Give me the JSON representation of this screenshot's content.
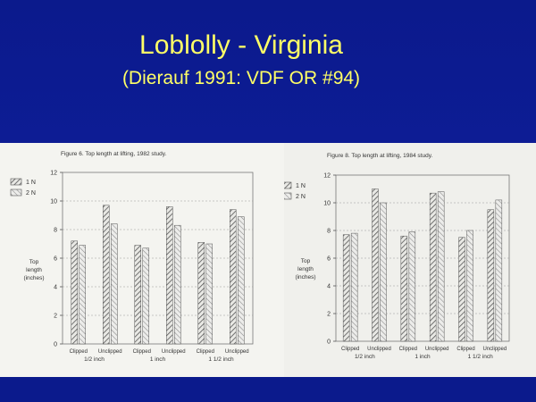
{
  "slide": {
    "title": "Loblolly - Virginia",
    "subtitle": "(Dierauf 1991: VDF OR #94)"
  },
  "chart_data": [
    {
      "type": "bar",
      "title": "Figure 6.  Top length at lifting, 1982 study.",
      "ylabel": "Top length (inches)",
      "ylabel_lines": [
        "Top",
        "length",
        "(inches)"
      ],
      "ylim": [
        0,
        12
      ],
      "yticks": [
        0,
        2,
        4,
        6,
        8,
        10,
        12
      ],
      "grid": true,
      "legend_position": "top-left",
      "categories": [
        "Clipped",
        "Unclipped",
        "Clipped",
        "Unclipped",
        "Clipped",
        "Unclipped"
      ],
      "groups": [
        "1/2 inch",
        "1 inch",
        "1 1/2 inch"
      ],
      "series": [
        {
          "name": "1 N",
          "values": [
            7.2,
            9.7,
            6.9,
            9.6,
            7.1,
            9.4
          ]
        },
        {
          "name": "2 N",
          "values": [
            6.9,
            8.4,
            6.7,
            8.3,
            7.0,
            8.9
          ]
        }
      ]
    },
    {
      "type": "bar",
      "title": "Figure 8.  Top length at lifting, 1984 study.",
      "ylabel": "Top length (inches)",
      "ylabel_lines": [
        "Top",
        "length",
        "(inches)"
      ],
      "ylim": [
        0,
        12
      ],
      "yticks": [
        0,
        2,
        4,
        6,
        8,
        10,
        12
      ],
      "grid": true,
      "legend_position": "top-left",
      "categories": [
        "Clipped",
        "Unclipped",
        "Clipped",
        "Unclipped",
        "Clipped",
        "Unclipped"
      ],
      "groups": [
        "1/2 inch",
        "1 inch",
        "1 1/2 inch"
      ],
      "series": [
        {
          "name": "1 N",
          "values": [
            7.7,
            11.0,
            7.6,
            10.7,
            7.5,
            9.5
          ]
        },
        {
          "name": "2 N",
          "values": [
            7.8,
            10.0,
            7.9,
            10.8,
            8.0,
            10.2
          ]
        }
      ]
    }
  ]
}
